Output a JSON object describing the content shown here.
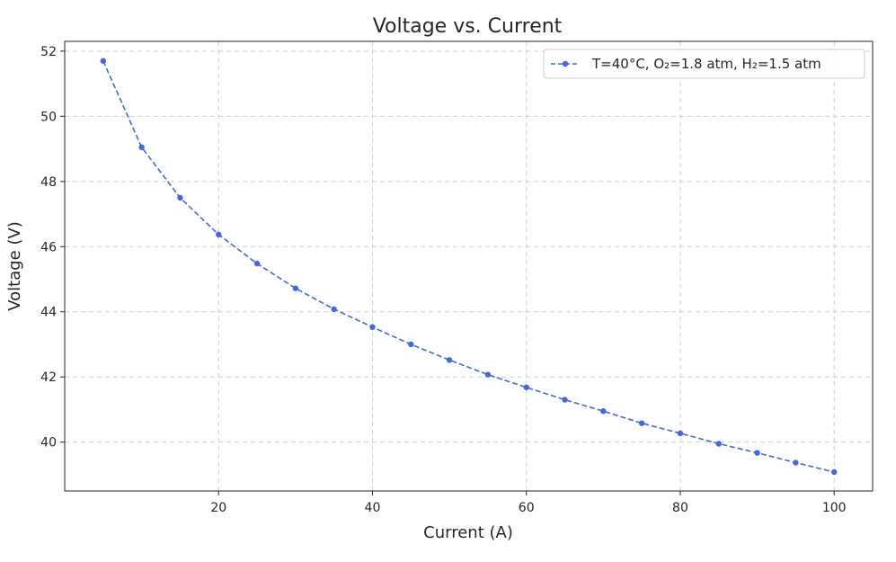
{
  "chart_data": {
    "type": "line",
    "title": "Voltage vs. Current",
    "xlabel": "Current (A)",
    "ylabel": "Voltage (V)",
    "xlim": [
      0,
      105
    ],
    "ylim": [
      38.5,
      52.3
    ],
    "xticks": [
      20,
      40,
      60,
      80,
      100
    ],
    "yticks": [
      40,
      42,
      44,
      46,
      48,
      50,
      52
    ],
    "grid": true,
    "legend_position": "top-right",
    "series": [
      {
        "name": "T=40°C, O₂=1.8 atm, H₂=1.5 atm",
        "color": "#4169e1",
        "line_style": "dashed",
        "marker": "circle",
        "x": [
          5,
          10,
          15,
          20,
          25,
          30,
          35,
          40,
          45,
          50,
          55,
          60,
          65,
          70,
          75,
          80,
          85,
          90,
          95,
          100
        ],
        "y": [
          51.7,
          49.05,
          47.5,
          46.37,
          45.48,
          44.72,
          44.08,
          43.53,
          43.0,
          42.52,
          42.07,
          41.68,
          41.3,
          40.95,
          40.58,
          40.27,
          39.95,
          39.67,
          39.37,
          39.08
        ]
      }
    ]
  }
}
